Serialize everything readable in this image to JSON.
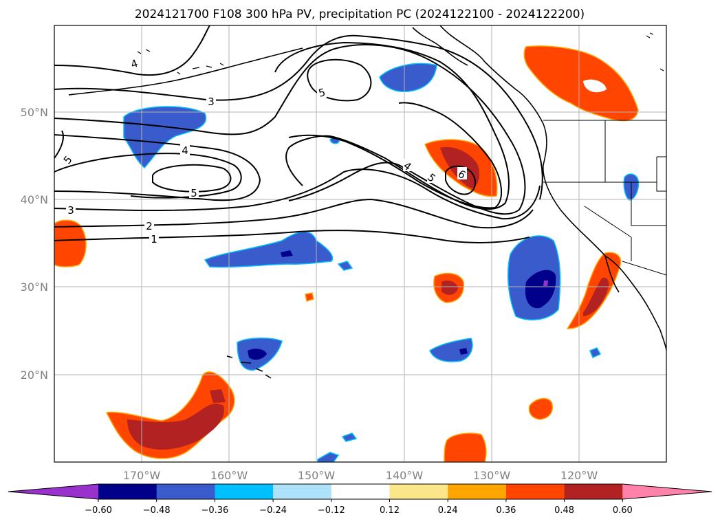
{
  "title": "2024121700 F108 300 hPa PV, precipitation PC (2024122100 - 2024122200)",
  "lat_labels": [
    "50°N",
    "40°N",
    "30°N",
    "20°N"
  ],
  "lon_labels": [
    "170°W",
    "160°W",
    "150°W",
    "140°W",
    "130°W",
    "120°W"
  ],
  "contour_labels": {
    "c1": "1",
    "c2": "2",
    "c3a": "3",
    "c3b": "3",
    "c4a": "4",
    "c4b": "4",
    "c4c": "4",
    "c5a": "5",
    "c5b": "5",
    "c5c": "5",
    "c5d": "5",
    "c6": "6"
  },
  "colorbar": {
    "ticks": [
      "−0.60",
      "−0.48",
      "−0.36",
      "−0.24",
      "−0.12",
      "0.12",
      "0.24",
      "0.36",
      "0.48",
      "0.60"
    ],
    "colors": [
      "#9932cc",
      "#00008b",
      "#3a5bcc",
      "#00bfff",
      "#aee2fa",
      "#ffffff",
      "#fce68a",
      "#ffa500",
      "#ff4500",
      "#b22222",
      "#ff82ab"
    ]
  },
  "map": {
    "extent": {
      "lon_min": -180,
      "lon_max": -110,
      "lat_min": 10,
      "lat_max": 60
    },
    "gridlines": true,
    "fields": [
      "300 hPa PV (black contours)",
      "precipitation PC (filled)"
    ]
  }
}
